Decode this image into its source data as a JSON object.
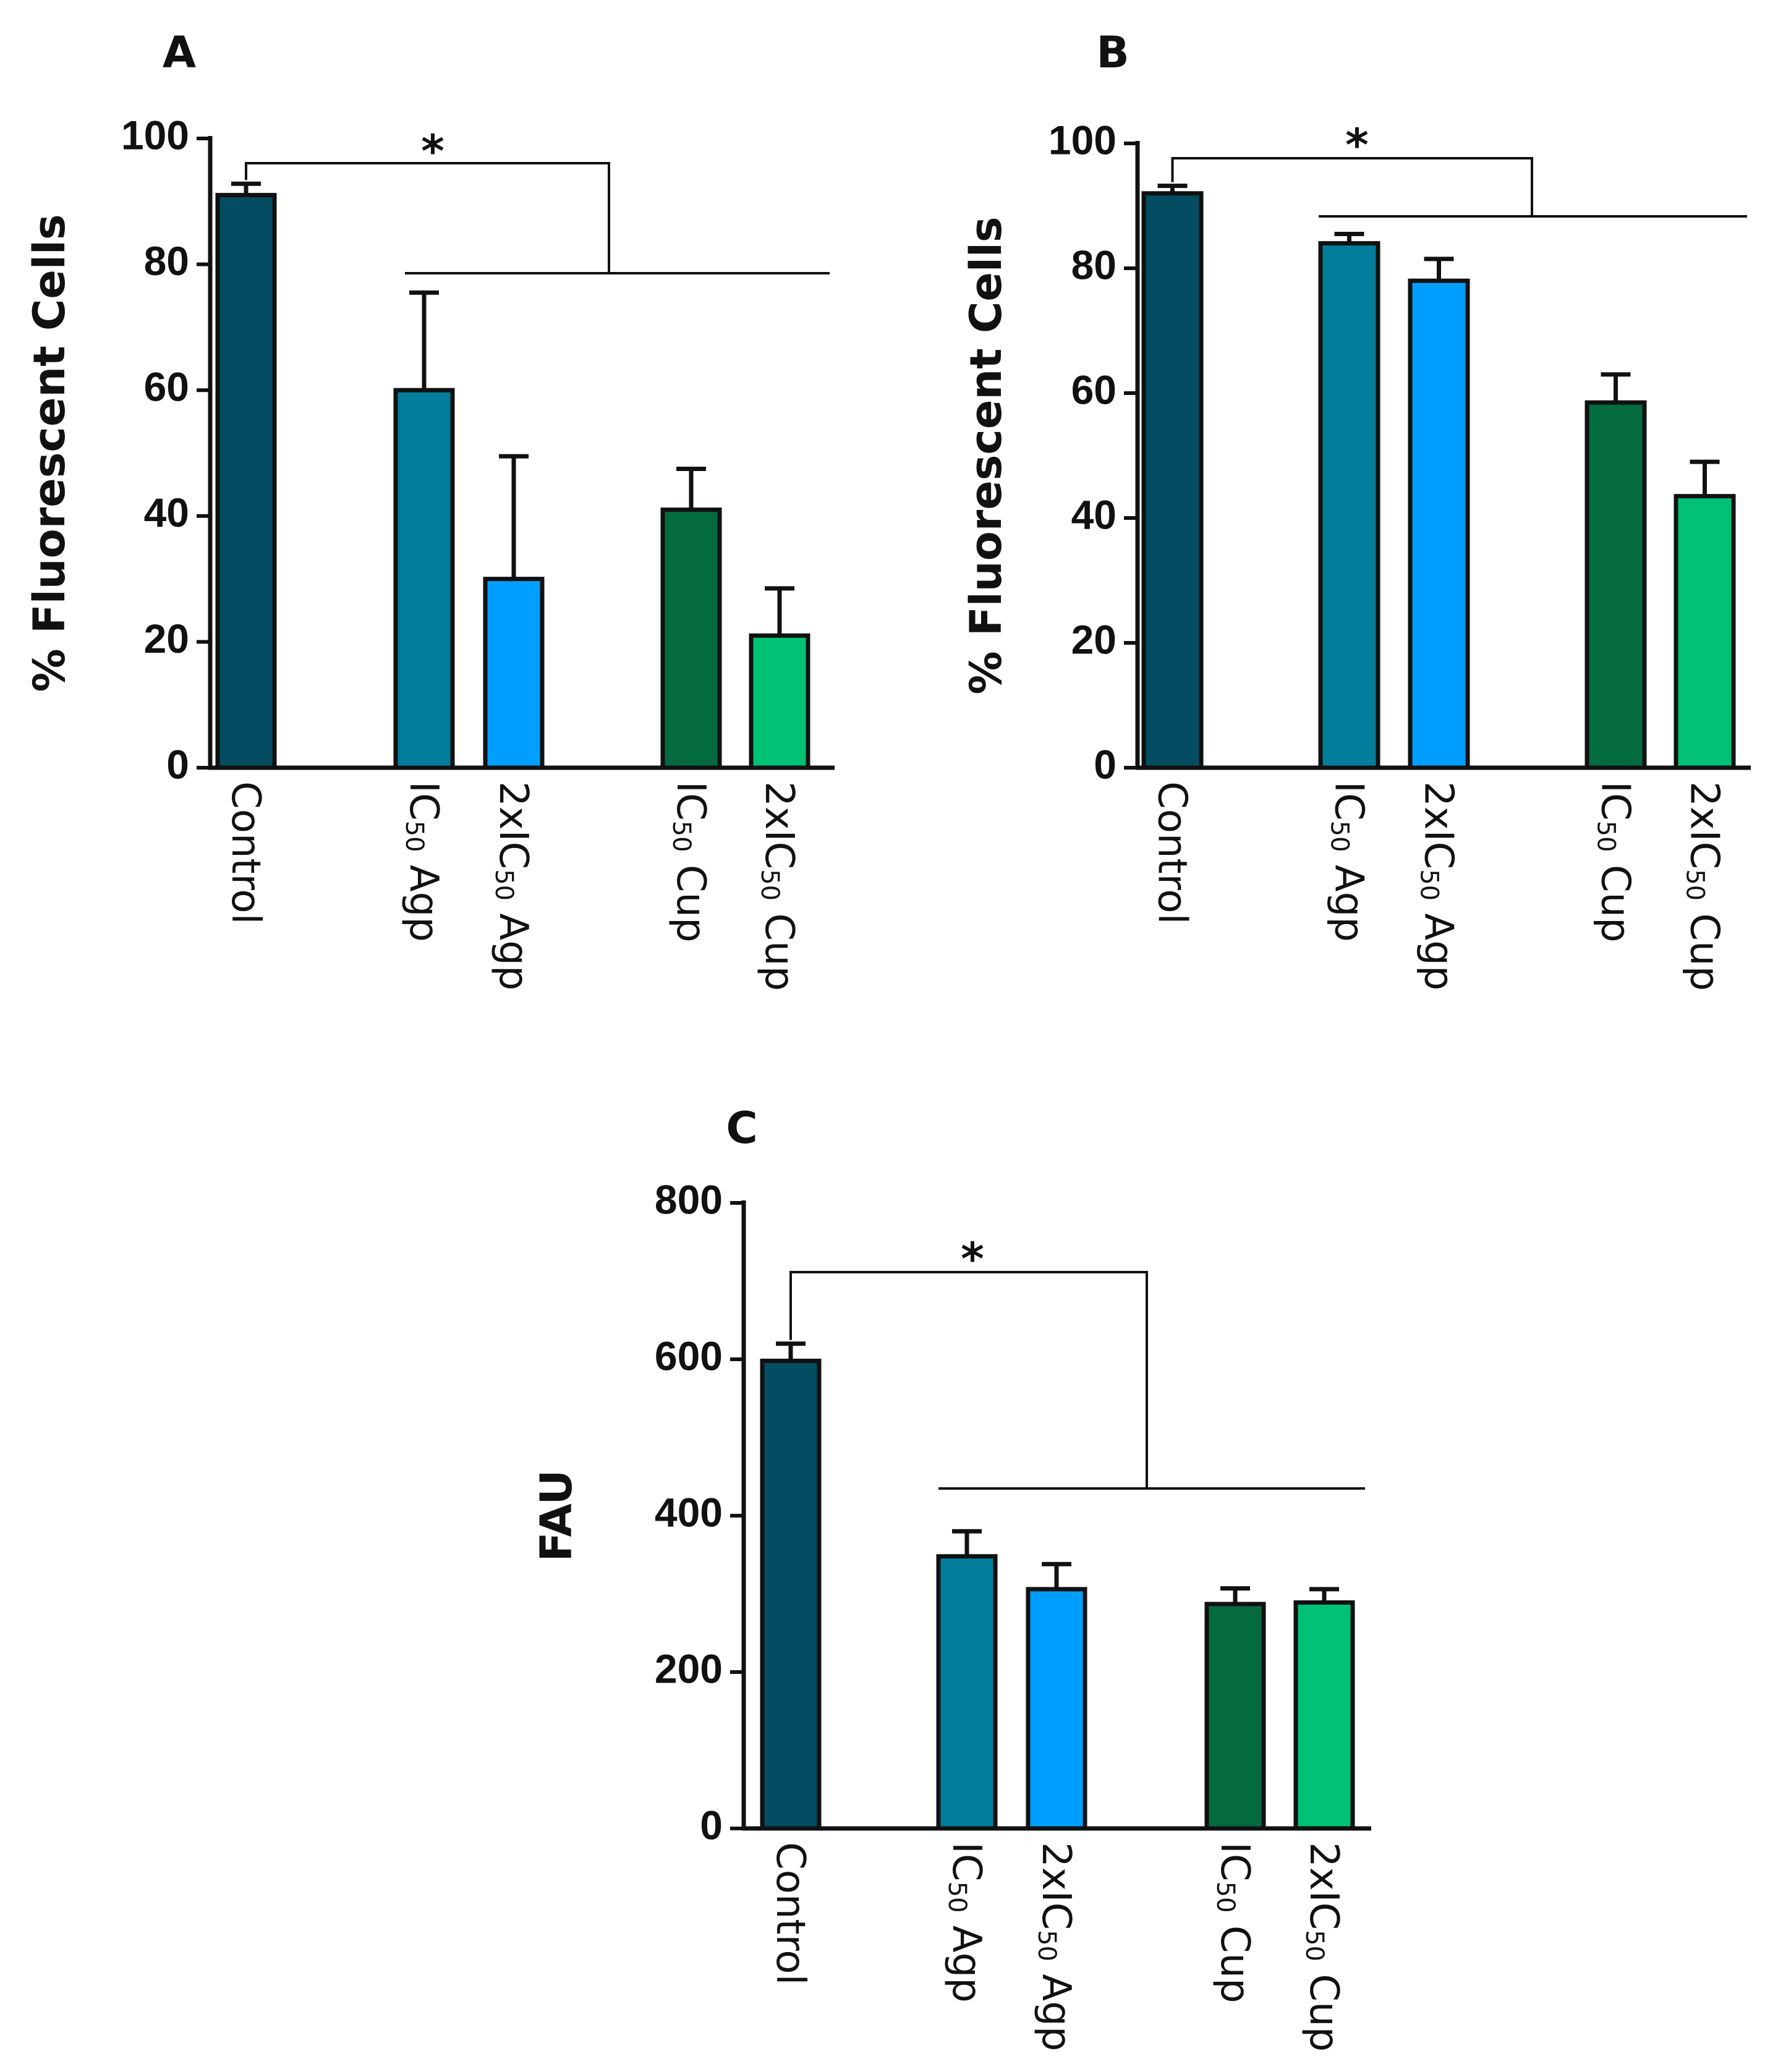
{
  "chart_data": [
    {
      "panel": "A",
      "type": "bar",
      "title": "",
      "xlabel": "",
      "ylabel": "% Fluorescent Cells",
      "ylim": [
        0,
        100
      ],
      "yticks": [
        0,
        20,
        40,
        60,
        80,
        100
      ],
      "categories": [
        "Control",
        "IC50 Agp",
        "2xIC50 Agp",
        "IC50 Cup",
        "2xIC50 Cup"
      ],
      "category_labels": [
        {
          "pre": "Control",
          "sub": "",
          "post": ""
        },
        {
          "pre": "IC",
          "sub": "50",
          "post": " Agp"
        },
        {
          "pre": "2xIC",
          "sub": "50",
          "post": " Agp"
        },
        {
          "pre": "IC",
          "sub": "50",
          "post": " Cup"
        },
        {
          "pre": "2xIC",
          "sub": "50",
          "post": " Cup"
        }
      ],
      "values": [
        91,
        60,
        30,
        41,
        21
      ],
      "errors": [
        1.8,
        15.5,
        19.5,
        6.5,
        7.5
      ],
      "colors": [
        "#034c61",
        "#037d9c",
        "#009fff",
        "#046a40",
        "#00c175"
      ],
      "significance": "*"
    },
    {
      "panel": "B",
      "type": "bar",
      "title": "",
      "xlabel": "",
      "ylabel": "% Fluorescent Cells",
      "ylim": [
        0,
        100
      ],
      "yticks": [
        0,
        20,
        40,
        60,
        80,
        100
      ],
      "categories": [
        "Control",
        "IC50 Agp",
        "2xIC50 Agp",
        "IC50 Cup",
        "2xIC50 Cup"
      ],
      "category_labels": [
        {
          "pre": "Control",
          "sub": "",
          "post": ""
        },
        {
          "pre": "IC",
          "sub": "50",
          "post": " Agp"
        },
        {
          "pre": "2xIC",
          "sub": "50",
          "post": " Agp"
        },
        {
          "pre": "IC",
          "sub": "50",
          "post": " Cup"
        },
        {
          "pre": "2xIC",
          "sub": "50",
          "post": " Cup"
        }
      ],
      "values": [
        92,
        84,
        78,
        58.5,
        43.5
      ],
      "errors": [
        1.2,
        1.5,
        3.5,
        4.5,
        5.5
      ],
      "colors": [
        "#034c61",
        "#037d9c",
        "#009fff",
        "#046a40",
        "#00c175"
      ],
      "significance": "*"
    },
    {
      "panel": "C",
      "type": "bar",
      "title": "",
      "xlabel": "",
      "ylabel": "FAU",
      "ylim": [
        0,
        800
      ],
      "yticks": [
        0,
        200,
        400,
        600,
        800
      ],
      "categories": [
        "Control",
        "IC50 Agp",
        "2xIC50 Agp",
        "IC50 Cup",
        "2xIC50 Cup"
      ],
      "category_labels": [
        {
          "pre": "Control",
          "sub": "",
          "post": ""
        },
        {
          "pre": "IC",
          "sub": "50",
          "post": " Agp"
        },
        {
          "pre": "2xIC",
          "sub": "50",
          "post": " Agp"
        },
        {
          "pre": "IC",
          "sub": "50",
          "post": " Cup"
        },
        {
          "pre": "2xIC",
          "sub": "50",
          "post": " Cup"
        }
      ],
      "values": [
        598,
        348,
        306,
        287,
        289
      ],
      "errors": [
        22,
        32,
        32,
        20,
        17
      ],
      "colors": [
        "#034c61",
        "#037d9c",
        "#009fff",
        "#046a40",
        "#00c175"
      ],
      "significance": "*"
    }
  ]
}
